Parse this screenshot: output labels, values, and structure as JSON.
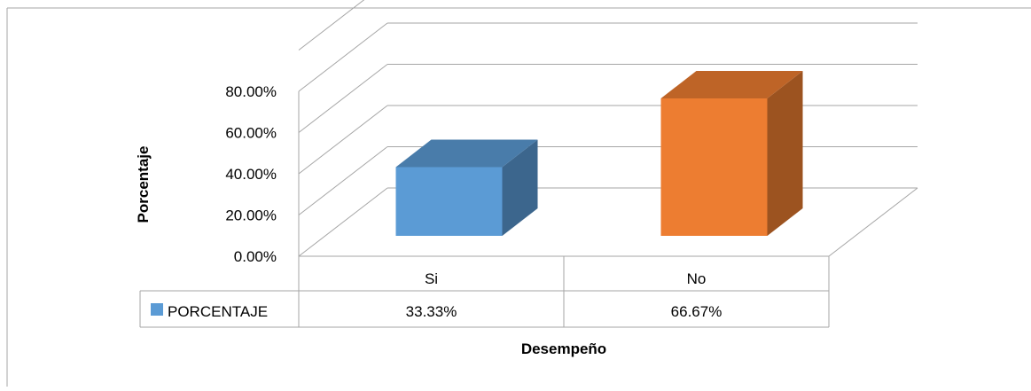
{
  "chart_data": {
    "type": "bar",
    "categories": [
      "Si",
      "No"
    ],
    "series": [
      {
        "name": "PORCENTAJE",
        "values": [
          33.33,
          66.67
        ],
        "color": "#5B9BD5"
      }
    ],
    "value_labels": [
      "33.33%",
      "66.67%"
    ],
    "bar_colors": [
      "#5B9BD5",
      "#ED7D31"
    ],
    "ylabel": "Porcentaje",
    "xlabel": "Desempeño",
    "ylim": [
      0,
      100
    ],
    "yticks": [
      0,
      20,
      40,
      60,
      80
    ],
    "ytick_labels": [
      "0.00%",
      "20.00%",
      "40.00%",
      "60.00%",
      "80.00%"
    ],
    "grid": true,
    "data_table": true,
    "legend_placement": "data table",
    "style": "3d-column"
  }
}
